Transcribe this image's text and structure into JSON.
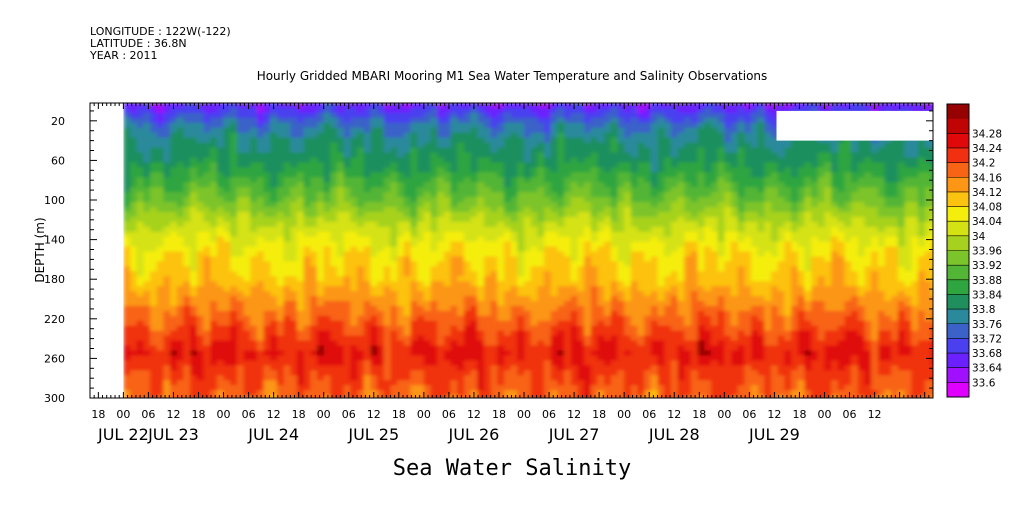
{
  "header": {
    "longitude": "LONGITUDE : 122W(-122)",
    "latitude": "LATITUDE : 36.8N",
    "year": "YEAR : 2011",
    "title": "Hourly Gridded MBARI Mooring M1 Sea Water Temperature and Salinity Observations"
  },
  "footer": {
    "variable_title": "Sea Water Salinity"
  },
  "chart_data": {
    "type": "heatmap",
    "title": "Hourly Gridded MBARI Mooring M1 Sea Water Temperature and Salinity Observations",
    "xlabel": "",
    "ylabel": "DEPTH (m)",
    "x_range_hours": [
      -8,
      194
    ],
    "data_start_hour": 0,
    "y_range": [
      300,
      2
    ],
    "y_ticks": [
      20,
      60,
      100,
      140,
      180,
      220,
      260,
      300
    ],
    "x_hour_ticks": [
      {
        "h": -6,
        "label": "18"
      },
      {
        "h": 0,
        "label": "00"
      },
      {
        "h": 6,
        "label": "06"
      },
      {
        "h": 12,
        "label": "12"
      },
      {
        "h": 18,
        "label": "18"
      },
      {
        "h": 24,
        "label": "00"
      },
      {
        "h": 30,
        "label": "06"
      },
      {
        "h": 36,
        "label": "12"
      },
      {
        "h": 42,
        "label": "18"
      },
      {
        "h": 48,
        "label": "00"
      },
      {
        "h": 54,
        "label": "06"
      },
      {
        "h": 60,
        "label": "12"
      },
      {
        "h": 66,
        "label": "18"
      },
      {
        "h": 72,
        "label": "00"
      },
      {
        "h": 78,
        "label": "06"
      },
      {
        "h": 84,
        "label": "12"
      },
      {
        "h": 90,
        "label": "18"
      },
      {
        "h": 96,
        "label": "00"
      },
      {
        "h": 102,
        "label": "06"
      },
      {
        "h": 108,
        "label": "12"
      },
      {
        "h": 114,
        "label": "18"
      },
      {
        "h": 120,
        "label": "00"
      },
      {
        "h": 126,
        "label": "06"
      },
      {
        "h": 132,
        "label": "12"
      },
      {
        "h": 138,
        "label": "18"
      },
      {
        "h": 144,
        "label": "00"
      },
      {
        "h": 150,
        "label": "06"
      },
      {
        "h": 156,
        "label": "12"
      },
      {
        "h": 162,
        "label": "18"
      },
      {
        "h": 168,
        "label": "00"
      },
      {
        "h": 174,
        "label": "06"
      },
      {
        "h": 180,
        "label": "12"
      }
    ],
    "x_day_labels": [
      {
        "h": 0,
        "label": "JUL 22"
      },
      {
        "h": 12,
        "label": "JUL 23"
      },
      {
        "h": 36,
        "label": "JUL 24"
      },
      {
        "h": 60,
        "label": "JUL 25"
      },
      {
        "h": 84,
        "label": "JUL 26"
      },
      {
        "h": 108,
        "label": "JUL 27"
      },
      {
        "h": 132,
        "label": "JUL 28"
      },
      {
        "h": 156,
        "label": "JUL 29"
      }
    ],
    "missing_region": {
      "h_start": 156.5,
      "h_end": 194,
      "depth_start": 10,
      "depth_end": 40
    },
    "depth_profile": [
      {
        "depth": 2,
        "value": 33.65
      },
      {
        "depth": 12,
        "value": 33.7
      },
      {
        "depth": 25,
        "value": 33.76
      },
      {
        "depth": 40,
        "value": 33.8
      },
      {
        "depth": 60,
        "value": 33.83
      },
      {
        "depth": 80,
        "value": 33.88
      },
      {
        "depth": 100,
        "value": 33.93
      },
      {
        "depth": 120,
        "value": 33.99
      },
      {
        "depth": 140,
        "value": 34.04
      },
      {
        "depth": 160,
        "value": 34.08
      },
      {
        "depth": 180,
        "value": 34.1
      },
      {
        "depth": 200,
        "value": 34.14
      },
      {
        "depth": 220,
        "value": 34.18
      },
      {
        "depth": 240,
        "value": 34.22
      },
      {
        "depth": 255,
        "value": 34.25
      },
      {
        "depth": 270,
        "value": 34.22
      },
      {
        "depth": 285,
        "value": 34.2
      },
      {
        "depth": 300,
        "value": 34.18
      }
    ],
    "colorbar": {
      "levels": [
        33.6,
        33.64,
        33.68,
        33.72,
        33.76,
        33.8,
        33.84,
        33.88,
        33.92,
        33.96,
        34,
        34.04,
        34.08,
        34.12,
        34.16,
        34.2,
        34.24,
        34.28
      ],
      "labels": [
        "33.6",
        "33.64",
        "33.68",
        "33.72",
        "33.76",
        "33.8",
        "33.84",
        "33.88",
        "33.92",
        "33.96",
        "34",
        "34.04",
        "34.08",
        "34.12",
        "34.16",
        "34.2",
        "34.24",
        "34.28"
      ],
      "colors": [
        "#e000ff",
        "#a010ff",
        "#6a20ff",
        "#4a40f0",
        "#3a62c8",
        "#2a8a9c",
        "#1f8f5e",
        "#2fa540",
        "#52b535",
        "#7cc42c",
        "#a6d21f",
        "#d4e214",
        "#f5ee0c",
        "#fcc210",
        "#fc9614",
        "#f86416",
        "#f03010",
        "#e00808",
        "#c00404",
        "#960202"
      ]
    }
  }
}
